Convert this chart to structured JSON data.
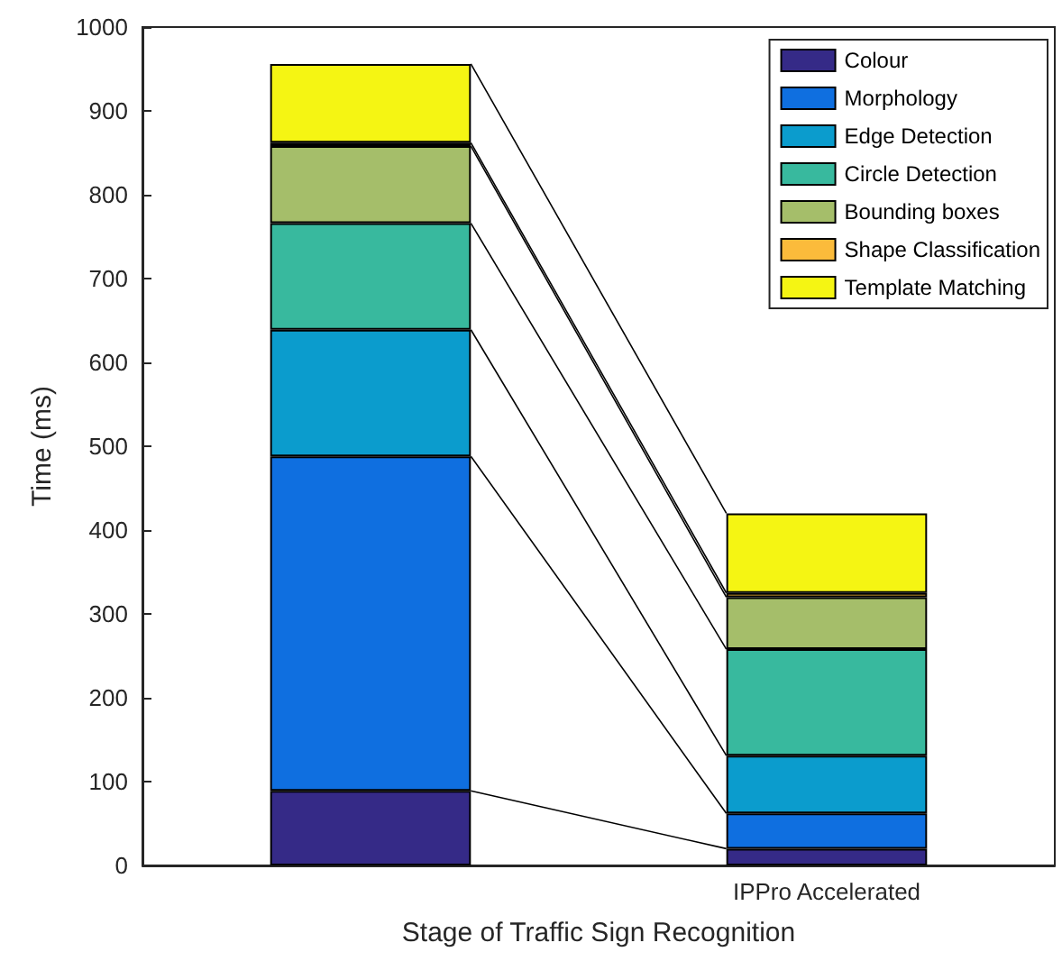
{
  "chart_data": {
    "type": "bar",
    "stacked": true,
    "xlabel": "Stage of Traffic Sign Recognition",
    "ylabel": "Time (ms)",
    "categories": [
      null,
      "IPPro Accelerated"
    ],
    "series": [
      {
        "name": "Colour",
        "color": "#352a87",
        "values": [
          89,
          20
        ]
      },
      {
        "name": "Morphology",
        "color": "#0f6fe0",
        "values": [
          399,
          42
        ]
      },
      {
        "name": "Edge Detection",
        "color": "#0b9ccd",
        "values": [
          151,
          69
        ]
      },
      {
        "name": "Circle Detection",
        "color": "#38b99e",
        "values": [
          127,
          127
        ]
      },
      {
        "name": "Bounding boxes",
        "color": "#a5be6a",
        "values": [
          92,
          62
        ]
      },
      {
        "name": "Shape Classification",
        "color": "#fbbb3b",
        "values": [
          4,
          5
        ]
      },
      {
        "name": "Template Matching",
        "color": "#f5f513",
        "values": [
          94,
          95
        ]
      }
    ],
    "ylim": [
      0,
      1000
    ],
    "yticks": [
      0,
      100,
      200,
      300,
      400,
      500,
      600,
      700,
      800,
      900,
      1000
    ],
    "grid": false,
    "legend": "top right"
  }
}
